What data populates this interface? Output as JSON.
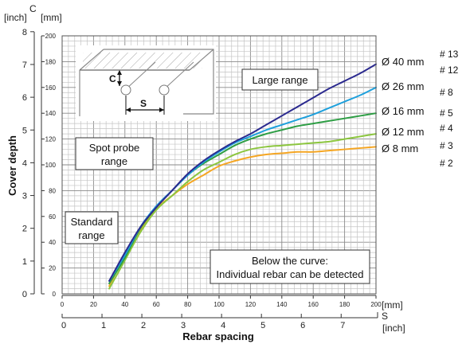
{
  "chart_data": {
    "type": "line",
    "xlabel": "Rebar spacing",
    "ylabel": "Cover depth",
    "x_unit_primary": "[mm]",
    "x_unit_secondary": "[inch]",
    "x_letter": "S",
    "y_unit_primary": "[mm]",
    "y_unit_secondary": "[inch]",
    "y_letter": "C",
    "xlim": [
      0,
      200
    ],
    "ylim": [
      0,
      200
    ],
    "grid": true,
    "x_ticks_mm": [
      "0",
      "20",
      "40",
      "60",
      "80",
      "100",
      "120",
      "140",
      "160",
      "180",
      "200"
    ],
    "x_ticks_inch": [
      "0",
      "1",
      "2",
      "3",
      "4",
      "5",
      "6",
      "7"
    ],
    "y_ticks_mm": [
      "0",
      "20",
      "40",
      "60",
      "80",
      "100",
      "120",
      "140",
      "160",
      "180",
      "200"
    ],
    "y_ticks_inch": [
      "0",
      "1",
      "2",
      "3",
      "4",
      "5",
      "6",
      "7",
      "8"
    ],
    "series": [
      {
        "name": "Ø 8 mm",
        "color": "#f5a623",
        "x": [
          30,
          40,
          50,
          60,
          70,
          80,
          90,
          100,
          110,
          120,
          130,
          140,
          150,
          160,
          170,
          180,
          190,
          200
        ],
        "y": [
          6,
          30,
          50,
          66,
          76,
          85,
          92,
          99,
          103,
          106,
          108,
          109,
          110,
          110,
          111,
          112,
          113,
          114
        ]
      },
      {
        "name": "Ø 12 mm",
        "color": "#8cc63f",
        "x": [
          30,
          40,
          50,
          60,
          70,
          80,
          90,
          100,
          110,
          120,
          130,
          140,
          150,
          160,
          170,
          180,
          190,
          200
        ],
        "y": [
          4,
          26,
          48,
          65,
          76,
          87,
          96,
          102,
          108,
          112,
          114,
          115,
          116,
          117,
          118,
          120,
          122,
          124
        ]
      },
      {
        "name": "Ø 16 mm",
        "color": "#2e9e45",
        "x": [
          30,
          40,
          50,
          60,
          70,
          80,
          90,
          100,
          110,
          120,
          130,
          140,
          150,
          160,
          170,
          180,
          190,
          200
        ],
        "y": [
          8,
          28,
          51,
          67,
          80,
          92,
          101,
          108,
          115,
          120,
          124,
          127,
          130,
          132,
          134,
          136,
          138,
          140
        ]
      },
      {
        "name": "Ø 26 mm",
        "color": "#1ea0dc",
        "x": [
          30,
          40,
          50,
          60,
          70,
          80,
          90,
          100,
          110,
          120,
          130,
          140,
          150,
          160,
          170,
          180,
          190,
          200
        ],
        "y": [
          10,
          30,
          52,
          68,
          80,
          92,
          102,
          110,
          117,
          122,
          127,
          131,
          135,
          139,
          144,
          149,
          154,
          160
        ]
      },
      {
        "name": "Ø 40 mm",
        "color": "#2b2a8f",
        "x": [
          30,
          40,
          50,
          60,
          70,
          80,
          90,
          100,
          110,
          120,
          130,
          140,
          150,
          160,
          170,
          180,
          190,
          200
        ],
        "y": [
          10,
          32,
          52,
          67,
          80,
          93,
          103,
          111,
          118,
          124,
          131,
          138,
          145,
          152,
          159,
          165,
          171,
          178
        ]
      }
    ],
    "rebar_numbers": [
      "# 13",
      "# 12",
      "# 8",
      "# 5",
      "# 4",
      "# 3",
      "# 2"
    ],
    "range_labels": {
      "large": "Large range",
      "spot_line1": "Spot probe",
      "spot_line2": "range",
      "standard_line1": "Standard",
      "standard_line2": "range"
    },
    "annotation": {
      "line1": "Below the curve:",
      "line2": "Individual rebar can be detected"
    },
    "inset": {
      "c_label": "C",
      "s_label": "S"
    }
  }
}
